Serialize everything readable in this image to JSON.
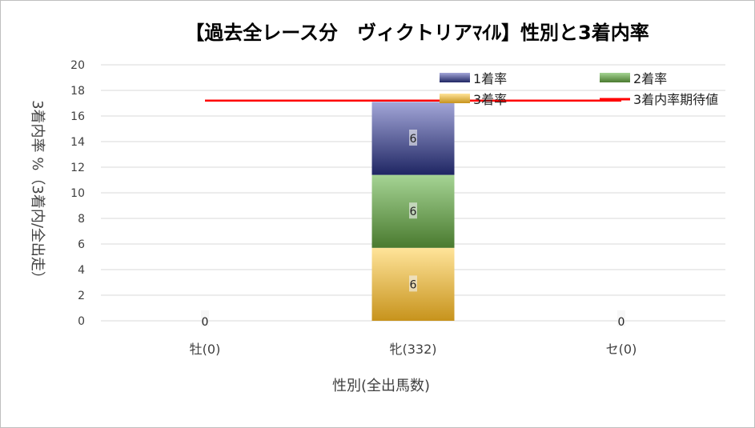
{
  "chart_data": {
    "type": "bar",
    "stacked": true,
    "title": "【過去全レース分　ヴィクトリアﾏｲﾙ】性別と3着内率",
    "xlabel": "性別(全出馬数)",
    "ylabel": "3着内率 %（3着内/全出走）",
    "categories": [
      "牡(0)",
      "牝(332)",
      "セ(0)"
    ],
    "ylim": [
      0,
      20
    ],
    "yticks": [
      "0",
      "2",
      "4",
      "6",
      "8",
      "10",
      "12",
      "14",
      "16",
      "18",
      "20"
    ],
    "series": [
      {
        "name": "3着率",
        "values": [
          0,
          5.7,
          0
        ],
        "labels": [
          "",
          "6",
          ""
        ],
        "color": "#e8c35a"
      },
      {
        "name": "2着率",
        "values": [
          0,
          5.7,
          0
        ],
        "labels": [
          "",
          "6",
          ""
        ],
        "color": "#7fb26a"
      },
      {
        "name": "1着率",
        "values": [
          0,
          5.7,
          0
        ],
        "labels": [
          "",
          "6",
          ""
        ],
        "color": "#5a60a8"
      }
    ],
    "total_labels": [
      "0",
      "",
      "0"
    ],
    "expected_line": {
      "name": "3着内率期待値",
      "value": 17.2,
      "color": "#ff0000"
    },
    "legend": [
      "1着率",
      "2着率",
      "3着率",
      "3着内率期待値"
    ],
    "legend_position": "top-right",
    "grid": true
  }
}
